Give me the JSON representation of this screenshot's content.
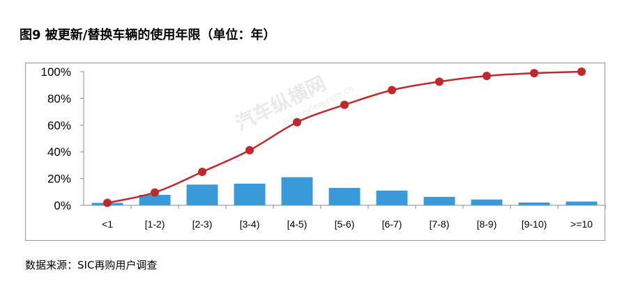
{
  "figure": {
    "title": "图9  被更新/替换车辆的使用年限（单位：年）",
    "source": "数据来源：SIC再购用户调查",
    "watermark": "汽车纵横网",
    "watermark_url": "autoreview.com.cn"
  },
  "chart_data": {
    "type": "bar",
    "categories": [
      "<1",
      "[1-2)",
      "[2-3)",
      "[3-4)",
      "[4-5)",
      "[5-6)",
      "[6-7)",
      "[7-8)",
      "[8-9)",
      "[9-10)",
      ">=10"
    ],
    "series": [
      {
        "type": "bar",
        "values": [
          0.018,
          0.078,
          0.155,
          0.162,
          0.21,
          0.13,
          0.11,
          0.063,
          0.043,
          0.021,
          0.028
        ],
        "color": "#3a9ad9"
      },
      {
        "type": "line",
        "values": [
          0.018,
          0.096,
          0.25,
          0.412,
          0.622,
          0.752,
          0.862,
          0.925,
          0.968,
          0.989,
          1.0
        ],
        "color": "#c0282b"
      }
    ],
    "ylim": [
      0,
      1.0
    ],
    "yticks": [
      "0%",
      "20%",
      "40%",
      "60%",
      "80%",
      "100%"
    ],
    "grid": false,
    "legend": "none"
  }
}
